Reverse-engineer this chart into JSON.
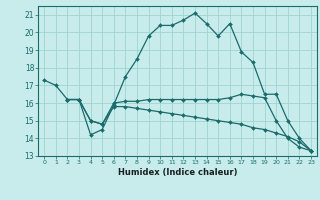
{
  "xlabel": "Humidex (Indice chaleur)",
  "x_ticks": [
    0,
    1,
    2,
    3,
    4,
    5,
    6,
    7,
    8,
    9,
    10,
    11,
    12,
    13,
    14,
    15,
    16,
    17,
    18,
    19,
    20,
    21,
    22,
    23
  ],
  "xlim": [
    -0.5,
    23.5
  ],
  "ylim": [
    13,
    21.5
  ],
  "y_ticks": [
    13,
    14,
    15,
    16,
    17,
    18,
    19,
    20,
    21
  ],
  "bg_color": "#c8ecec",
  "grid_color": "#a0d4d4",
  "line_color": "#1a6b6b",
  "line1_x": [
    0,
    1,
    2,
    3,
    4,
    5,
    6,
    7,
    8,
    9,
    10,
    11,
    12,
    13,
    14,
    15,
    16,
    17,
    18,
    19,
    20,
    21,
    22,
    23
  ],
  "line1_y": [
    17.3,
    17.0,
    16.2,
    16.2,
    14.2,
    14.5,
    15.9,
    17.5,
    18.5,
    19.8,
    20.4,
    20.4,
    20.7,
    21.1,
    20.5,
    19.8,
    20.5,
    18.9,
    18.3,
    16.5,
    16.5,
    15.0,
    14.0,
    13.3
  ],
  "line2_x": [
    2,
    3,
    4,
    5,
    6,
    7,
    8,
    9,
    10,
    11,
    12,
    13,
    14,
    15,
    16,
    17,
    18,
    19,
    20,
    21,
    22,
    23
  ],
  "line2_y": [
    16.2,
    16.2,
    15.0,
    14.8,
    16.0,
    16.1,
    16.1,
    16.2,
    16.2,
    16.2,
    16.2,
    16.2,
    16.2,
    16.2,
    16.3,
    16.5,
    16.4,
    16.3,
    15.0,
    14.0,
    13.5,
    13.3
  ],
  "line3_x": [
    2,
    3,
    4,
    5,
    6,
    7,
    8,
    9,
    10,
    11,
    12,
    13,
    14,
    15,
    16,
    17,
    18,
    19,
    20,
    21,
    22,
    23
  ],
  "line3_y": [
    16.2,
    16.2,
    15.0,
    14.8,
    15.8,
    15.8,
    15.7,
    15.6,
    15.5,
    15.4,
    15.3,
    15.2,
    15.1,
    15.0,
    14.9,
    14.8,
    14.6,
    14.5,
    14.3,
    14.1,
    13.8,
    13.3
  ]
}
